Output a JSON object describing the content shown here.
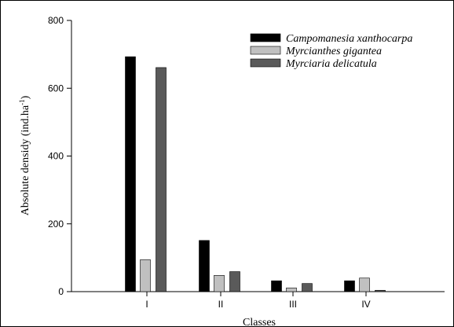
{
  "chart_data": {
    "type": "bar",
    "title": "",
    "xlabel": "Classes",
    "ylabel": "Absolute densidy  (ind.ha",
    "ylabel_superscript": "-1",
    "ylabel_close": ")",
    "categories": [
      "I",
      "II",
      "III",
      "IV"
    ],
    "ylim": [
      0,
      800
    ],
    "yticks": [
      0,
      200,
      400,
      600,
      800
    ],
    "grid": false,
    "legend_position": "top-right",
    "series": [
      {
        "name": "Campomanesia xanthocarpa",
        "color": "#000000",
        "values": [
          693,
          151,
          32,
          32
        ]
      },
      {
        "name": "Myrcianthes gigantea",
        "color": "#c0c0c0",
        "values": [
          94,
          48,
          11,
          40
        ]
      },
      {
        "name": "Myrciaria delicatula",
        "color": "#5a5a5a",
        "values": [
          661,
          59,
          24,
          4
        ]
      }
    ]
  }
}
